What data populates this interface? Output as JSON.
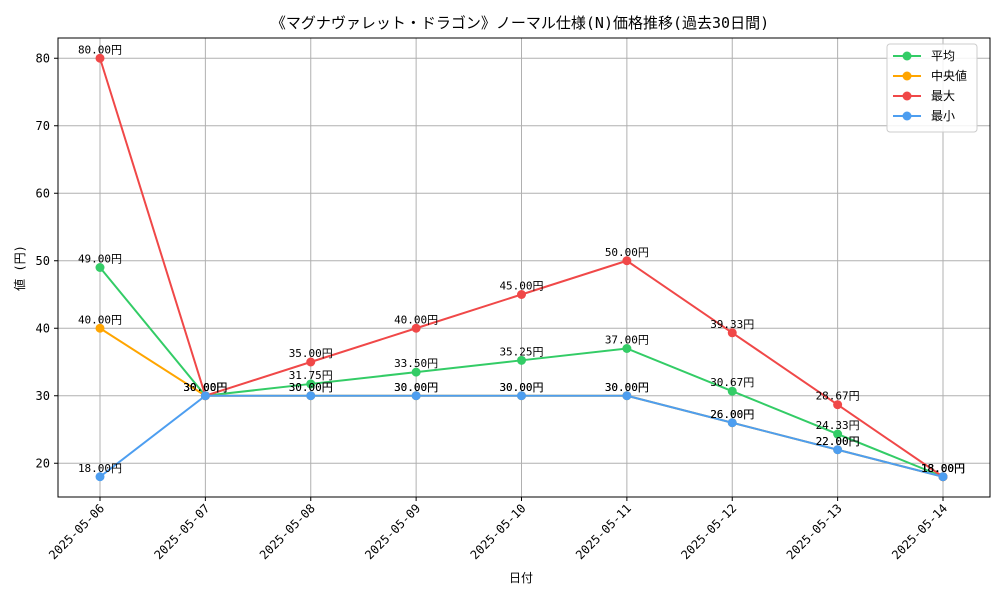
{
  "chart_data": {
    "type": "line",
    "title": "《マグナヴァレット・ドラゴン》ノーマル仕様(N)価格推移(過去30日間)",
    "xlabel": "日付",
    "ylabel": "値 (円)",
    "x": [
      "2025-05-06",
      "2025-05-07",
      "2025-05-08",
      "2025-05-09",
      "2025-05-10",
      "2025-05-11",
      "2025-05-12",
      "2025-05-13",
      "2025-05-14"
    ],
    "ylim": [
      15,
      83
    ],
    "yticks": [
      20,
      30,
      40,
      50,
      60,
      70,
      80
    ],
    "grid": true,
    "legend_position": "top-right",
    "label_suffix": "円",
    "series": [
      {
        "name": "平均",
        "color": "#33cc66",
        "values": [
          49.0,
          30.0,
          31.75,
          33.5,
          35.25,
          37.0,
          30.67,
          24.33,
          18.0
        ]
      },
      {
        "name": "中央値",
        "color": "#ffa500",
        "values": [
          40.0,
          30.0,
          30.0,
          30.0,
          30.0,
          30.0,
          26.0,
          22.0,
          18.0
        ]
      },
      {
        "name": "最大",
        "color": "#f04848",
        "values": [
          80.0,
          30.0,
          35.0,
          40.0,
          45.0,
          50.0,
          39.33,
          28.67,
          18.0
        ]
      },
      {
        "name": "最小",
        "color": "#4d9ef0",
        "values": [
          18.0,
          30.0,
          30.0,
          30.0,
          30.0,
          30.0,
          26.0,
          22.0,
          18.0
        ]
      }
    ]
  }
}
